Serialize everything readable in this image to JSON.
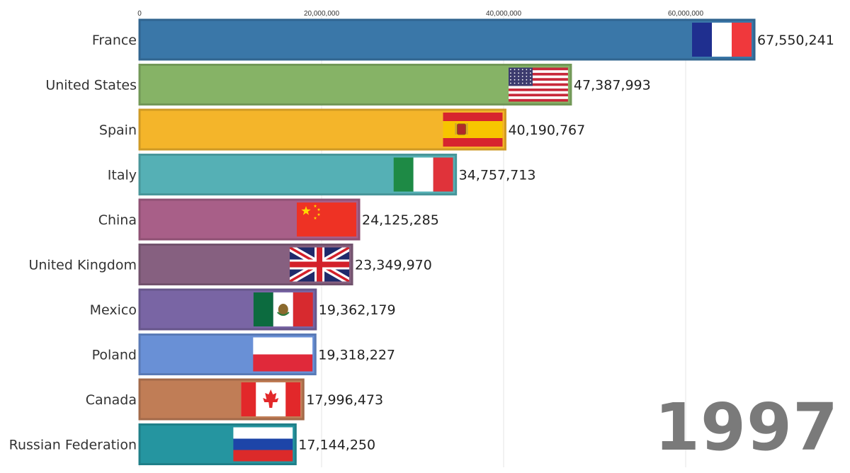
{
  "chart_data": {
    "type": "bar",
    "orientation": "horizontal",
    "year": "1997",
    "xlim": [
      0,
      70000000
    ],
    "x_ticks": [
      0,
      20000000,
      40000000,
      60000000
    ],
    "x_tick_labels": [
      "0",
      "20,000,000",
      "40,000,000",
      "60,000,000"
    ],
    "grid": true,
    "categories": [
      "France",
      "United States",
      "Spain",
      "Italy",
      "China",
      "United Kingdom",
      "Mexico",
      "Poland",
      "Canada",
      "Russian Federation"
    ],
    "values": [
      67550241,
      47387993,
      40190767,
      34757713,
      24125285,
      23349970,
      19362179,
      19318227,
      17996473,
      17144250
    ],
    "value_labels": [
      "67,550,241",
      "47,387,993",
      "40,190,767",
      "34,757,713",
      "24,125,285",
      "23,349,970",
      "19,362,179",
      "19,318,227",
      "17,996,473",
      "17,144,250"
    ],
    "colors": [
      "#3a77a8",
      "#86b366",
      "#f4b52a",
      "#55b0b5",
      "#a85f88",
      "#866080",
      "#7965a4",
      "#6990d6",
      "#c07d56",
      "#2595a0"
    ],
    "flag_icons": [
      "france-flag-icon",
      "usa-flag-icon",
      "spain-flag-icon",
      "italy-flag-icon",
      "china-flag-icon",
      "uk-flag-icon",
      "mexico-flag-icon",
      "poland-flag-icon",
      "canada-flag-icon",
      "russia-flag-icon"
    ]
  }
}
